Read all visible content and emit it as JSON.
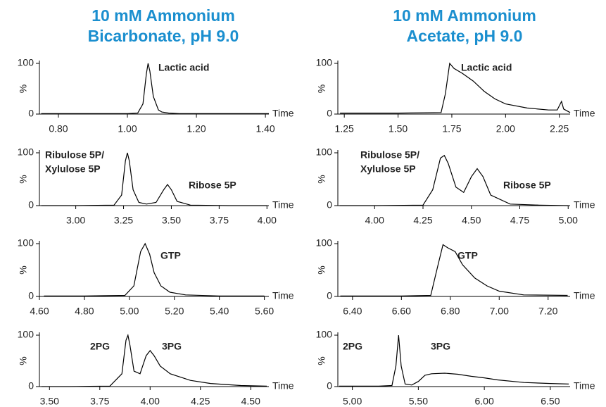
{
  "titles": [
    [
      "10 mM Ammonium",
      "Bicarbonate, pH 9.0"
    ],
    [
      "10 mM Ammonium",
      "Acetate, pH 9.0"
    ]
  ],
  "chart_data": [
    {
      "type": "line",
      "ylabel": "%",
      "xlabel": "Time",
      "color": "#000000",
      "annotations": [
        "Lactic acid"
      ],
      "xlim": [
        0.745,
        1.41
      ],
      "xticks": [
        {
          "value": 0.8,
          "label": "0.80"
        },
        {
          "value": 1,
          "label": "1.00"
        },
        {
          "value": 1.2,
          "label": "1.20"
        },
        {
          "value": 1.4,
          "label": "1.40"
        }
      ],
      "ylim": [
        0,
        100
      ],
      "yticks": [
        0,
        100
      ],
      "x": [
        0.75,
        0.8,
        0.85,
        0.9,
        0.95,
        1.0,
        1.03,
        1.045,
        1.055,
        1.06,
        1.065,
        1.075,
        1.09,
        1.1,
        1.12,
        1.15,
        1.2,
        1.3,
        1.41
      ],
      "values": [
        1,
        1,
        1,
        1,
        1,
        1,
        2,
        20,
        80,
        100,
        85,
        35,
        8,
        4,
        2,
        1,
        1,
        1,
        1
      ]
    },
    {
      "type": "line",
      "ylabel": "%",
      "xlabel": "Time",
      "color": "#000000",
      "annotations": [
        "Lactic acid"
      ],
      "xlim": [
        1.22,
        2.3
      ],
      "xticks": [
        {
          "value": 1.25,
          "label": "1.25"
        },
        {
          "value": 1.5,
          "label": "1.50"
        },
        {
          "value": 1.75,
          "label": "1.75"
        },
        {
          "value": 2,
          "label": "2.00"
        },
        {
          "value": 2.25,
          "label": "2.25"
        }
      ],
      "ylim": [
        0,
        100
      ],
      "yticks": [
        0,
        100
      ],
      "x": [
        1.23,
        1.5,
        1.7,
        1.72,
        1.74,
        1.76,
        1.8,
        1.85,
        1.9,
        1.95,
        2.0,
        2.1,
        2.2,
        2.24,
        2.26,
        2.27,
        2.3
      ],
      "values": [
        2,
        2,
        3,
        40,
        100,
        90,
        80,
        65,
        45,
        30,
        20,
        12,
        8,
        8,
        25,
        10,
        3
      ]
    },
    {
      "type": "line",
      "ylabel": "%",
      "xlabel": "Time",
      "color": "#000000",
      "annotations": [
        "Ribulose 5P/",
        "Xylulose 5P",
        "Ribose 5P"
      ],
      "xlim": [
        2.81,
        4.01
      ],
      "xticks": [
        {
          "value": 3,
          "label": "3.00"
        },
        3.25,
        {
          "value": 3.5,
          "label": "3.50"
        },
        3.75,
        {
          "value": 4,
          "label": "4.00"
        }
      ],
      "ylim": [
        0,
        100
      ],
      "yticks": [
        0,
        100
      ],
      "x": [
        2.82,
        3.0,
        3.2,
        3.24,
        3.26,
        3.27,
        3.28,
        3.3,
        3.33,
        3.37,
        3.42,
        3.46,
        3.48,
        3.5,
        3.53,
        3.6,
        3.8,
        4.0
      ],
      "values": [
        0,
        0,
        1,
        20,
        85,
        100,
        85,
        30,
        6,
        3,
        6,
        30,
        40,
        30,
        8,
        1,
        0,
        0
      ]
    },
    {
      "type": "line",
      "ylabel": "%",
      "xlabel": "Time",
      "color": "#000000",
      "annotations": [
        "Ribulose 5P/",
        "Xylulose 5P",
        "Ribose 5P"
      ],
      "xlim": [
        3.81,
        5.01
      ],
      "xticks": [
        {
          "value": 4,
          "label": "4.00"
        },
        4.25,
        {
          "value": 4.5,
          "label": "4.50"
        },
        4.75,
        {
          "value": 5,
          "label": "5.00"
        }
      ],
      "ylim": [
        0,
        100
      ],
      "yticks": [
        0,
        100
      ],
      "x": [
        3.82,
        4.0,
        4.25,
        4.3,
        4.34,
        4.36,
        4.38,
        4.42,
        4.46,
        4.5,
        4.53,
        4.56,
        4.6,
        4.7,
        4.85,
        5.0
      ],
      "values": [
        0,
        0,
        1,
        30,
        90,
        95,
        80,
        35,
        25,
        55,
        70,
        55,
        20,
        3,
        1,
        0
      ]
    },
    {
      "type": "line",
      "ylabel": "%",
      "xlabel": "Time",
      "color": "#000000",
      "annotations": [
        "GTP"
      ],
      "xlim": [
        4.6,
        5.62
      ],
      "xticks": [
        {
          "value": 4.6,
          "label": "4.60"
        },
        {
          "value": 4.8,
          "label": "4.80"
        },
        {
          "value": 5,
          "label": "5.00"
        },
        {
          "value": 5.2,
          "label": "5.20"
        },
        {
          "value": 5.4,
          "label": "5.40"
        },
        {
          "value": 5.6,
          "label": "5.60"
        }
      ],
      "ylim": [
        0,
        100
      ],
      "yticks": [
        0,
        100
      ],
      "x": [
        4.62,
        4.8,
        4.98,
        5.02,
        5.05,
        5.07,
        5.09,
        5.11,
        5.14,
        5.18,
        5.25,
        5.4,
        5.6
      ],
      "values": [
        1,
        1,
        2,
        20,
        85,
        100,
        80,
        45,
        20,
        8,
        3,
        1,
        1
      ]
    },
    {
      "type": "line",
      "ylabel": "%",
      "xlabel": "Time",
      "color": "#000000",
      "annotations": [
        "GTP"
      ],
      "xlim": [
        6.34,
        7.29
      ],
      "xticks": [
        {
          "value": 6.4,
          "label": "6.40"
        },
        {
          "value": 6.6,
          "label": "6.60"
        },
        {
          "value": 6.8,
          "label": "6.80"
        },
        {
          "value": 7,
          "label": "7.00"
        },
        {
          "value": 7.2,
          "label": "7.20"
        }
      ],
      "ylim": [
        0,
        100
      ],
      "yticks": [
        0,
        100
      ],
      "x": [
        6.35,
        6.6,
        6.72,
        6.75,
        6.77,
        6.79,
        6.82,
        6.85,
        6.9,
        6.95,
        7.0,
        7.1,
        7.28
      ],
      "values": [
        1,
        1,
        2,
        60,
        98,
        92,
        85,
        60,
        35,
        20,
        10,
        3,
        2
      ]
    },
    {
      "type": "line",
      "ylabel": "%",
      "xlabel": "Time",
      "color": "#000000",
      "annotations": [
        "2PG",
        "3PG"
      ],
      "xlim": [
        3.45,
        4.59
      ],
      "xticks": [
        {
          "value": 3.5,
          "label": "3.50"
        },
        3.75,
        {
          "value": 4,
          "label": "4.00"
        },
        4.25,
        {
          "value": 4.5,
          "label": "4.50"
        }
      ],
      "ylim": [
        0,
        100
      ],
      "yticks": [
        0,
        100
      ],
      "x": [
        3.46,
        3.6,
        3.8,
        3.86,
        3.88,
        3.89,
        3.9,
        3.92,
        3.95,
        3.98,
        4.0,
        4.02,
        4.05,
        4.1,
        4.2,
        4.3,
        4.45,
        4.58
      ],
      "values": [
        0,
        0,
        1,
        25,
        90,
        100,
        80,
        30,
        25,
        60,
        70,
        60,
        40,
        25,
        12,
        6,
        2,
        1
      ]
    },
    {
      "type": "line",
      "ylabel": "%",
      "xlabel": "Time",
      "color": "#000000",
      "annotations": [
        "2PG",
        "3PG"
      ],
      "xlim": [
        4.89,
        6.65
      ],
      "xticks": [
        {
          "value": 5,
          "label": "5.00"
        },
        {
          "value": 5.5,
          "label": "5.50"
        },
        {
          "value": 6,
          "label": "6.00"
        },
        {
          "value": 6.5,
          "label": "6.50"
        }
      ],
      "ylim": [
        0,
        100
      ],
      "yticks": [
        0,
        100
      ],
      "x": [
        4.9,
        5.2,
        5.3,
        5.33,
        5.35,
        5.37,
        5.4,
        5.45,
        5.5,
        5.55,
        5.6,
        5.7,
        5.8,
        5.9,
        6.0,
        6.1,
        6.3,
        6.5,
        6.64
      ],
      "values": [
        1,
        1,
        2,
        40,
        100,
        40,
        5,
        3,
        10,
        22,
        25,
        26,
        24,
        20,
        17,
        13,
        8,
        6,
        5
      ]
    }
  ]
}
